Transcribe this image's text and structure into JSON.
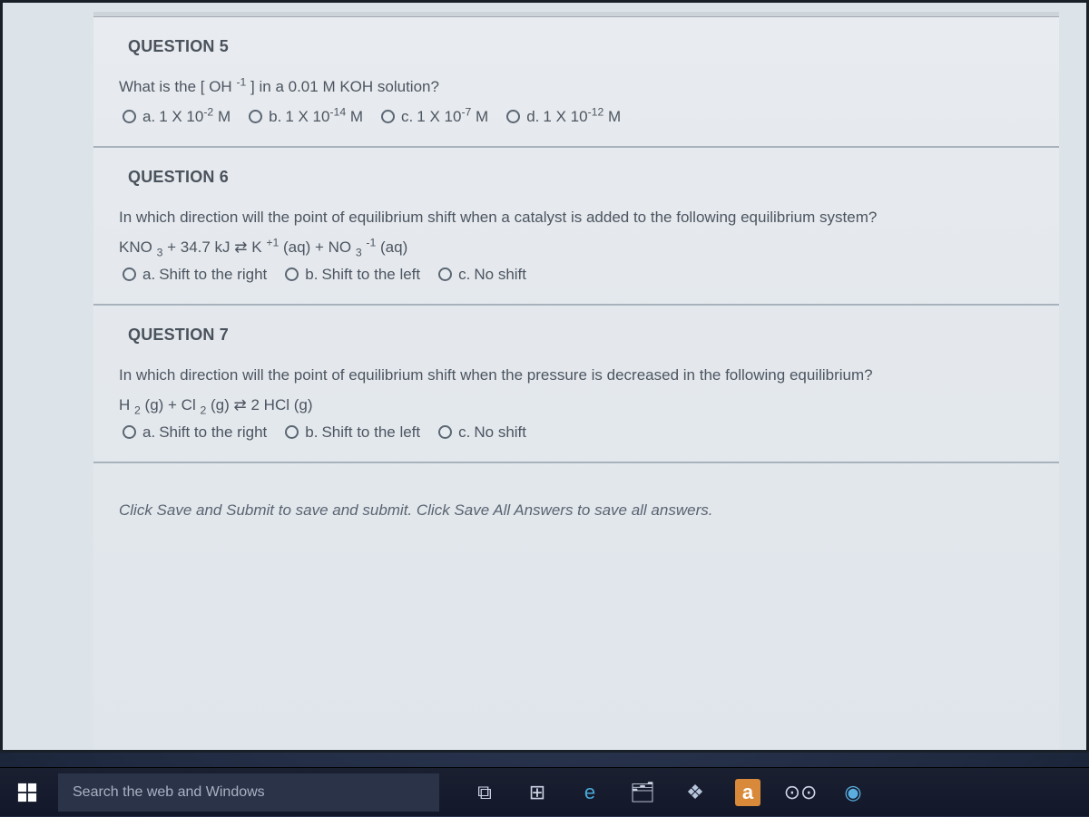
{
  "questions": [
    {
      "title": "QUESTION 5",
      "prompt_html": "What is the [ OH <sup>-1</sup> ] in a 0.01 M KOH solution?",
      "formula_html": "",
      "options": [
        {
          "label": "a.",
          "value_html": "1 X 10<sup>-2</sup> M"
        },
        {
          "label": "b.",
          "value_html": "1 X 10<sup>-14</sup> M"
        },
        {
          "label": "c.",
          "value_html": "1 X 10<sup>-7</sup> M"
        },
        {
          "label": "d.",
          "value_html": "1 X 10<sup>-12</sup> M"
        }
      ]
    },
    {
      "title": "QUESTION 6",
      "prompt_html": "In which direction will the point of equilibrium shift when a catalyst is added to the following equilibrium system?",
      "formula_html": "KNO <sub>3</sub> + 34.7 kJ <span class=\"eq-arrow\">⇄</span> K <sup>+1</sup> (aq) + NO <sub>3</sub> <sup>-1</sup> (aq)",
      "options": [
        {
          "label": "a.",
          "value_html": "Shift to the right"
        },
        {
          "label": "b.",
          "value_html": "Shift to the left"
        },
        {
          "label": "c.",
          "value_html": "No shift"
        }
      ]
    },
    {
      "title": "QUESTION 7",
      "prompt_html": "In which direction will the point of equilibrium shift when the pressure is decreased in the following equilibrium?",
      "formula_html": "H <sub>2</sub> (g) + Cl <sub>2</sub> (g) <span class=\"eq-arrow\">⇄</span> 2 HCl (g)",
      "options": [
        {
          "label": "a.",
          "value_html": "Shift to the right"
        },
        {
          "label": "b.",
          "value_html": "Shift to the left"
        },
        {
          "label": "c.",
          "value_html": "No shift"
        }
      ]
    }
  ],
  "footer_note": "Click Save and Submit to save and submit. Click Save All Answers to save all answers.",
  "taskbar": {
    "search_placeholder": "Search the web and Windows",
    "icons": [
      {
        "name": "task-view-icon",
        "glyph": "⧉"
      },
      {
        "name": "store-icon",
        "glyph": "⊞"
      },
      {
        "name": "edge-icon",
        "glyph": "e",
        "color": "#4aa8d8"
      },
      {
        "name": "file-explorer-icon",
        "glyph": "🗂"
      },
      {
        "name": "dropbox-icon",
        "glyph": "❖",
        "color": "#b8c6de"
      },
      {
        "name": "amazon-icon",
        "glyph": "a",
        "bg": "#d88a3a"
      },
      {
        "name": "unknown-app-icon",
        "glyph": "⊙⊙"
      },
      {
        "name": "chrome-icon",
        "glyph": "◉",
        "color": "#5aaee0"
      }
    ]
  },
  "colors": {
    "page_bg": "#dce3e9",
    "text": "#4c5560",
    "divider": "#a8b2bc",
    "taskbar_bg": "#151c2e",
    "taskbar_text": "#a9b2c4"
  }
}
